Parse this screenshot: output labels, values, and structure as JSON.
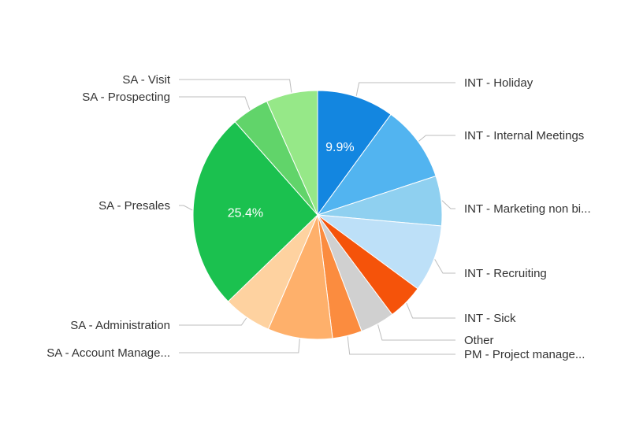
{
  "chart_data": {
    "type": "pie",
    "start": "top",
    "direction": "clockwise",
    "slices": [
      {
        "label": "INT - Holiday",
        "value": 9.9,
        "color": "#1386e0",
        "data_label": "9.9%"
      },
      {
        "label": "INT - Internal Meetings",
        "value": 9.8,
        "color": "#52b4f0"
      },
      {
        "label": "INT - Marketing non bi...",
        "value": 6.4,
        "color": "#8fd0f0"
      },
      {
        "label": "INT - Recruiting",
        "value": 8.6,
        "color": "#bde0f8"
      },
      {
        "label": "INT - Sick",
        "value": 4.6,
        "color": "#f5530a"
      },
      {
        "label": "Other",
        "value": 4.4,
        "color": "#d0d0d0"
      },
      {
        "label": "PM - Project manage...",
        "value": 3.8,
        "color": "#fb8c3f"
      },
      {
        "label": "SA - Account Manage...",
        "value": 8.3,
        "color": "#feb06b"
      },
      {
        "label": "SA - Administration",
        "value": 6.2,
        "color": "#fed2a0"
      },
      {
        "label": "SA - Presales",
        "value": 25.4,
        "color": "#1bc14f",
        "data_label": "25.4%"
      },
      {
        "label": "SA - Prospecting",
        "value": 4.8,
        "color": "#61d46a"
      },
      {
        "label": "SA - Visit",
        "value": 6.6,
        "color": "#96e888"
      }
    ]
  }
}
